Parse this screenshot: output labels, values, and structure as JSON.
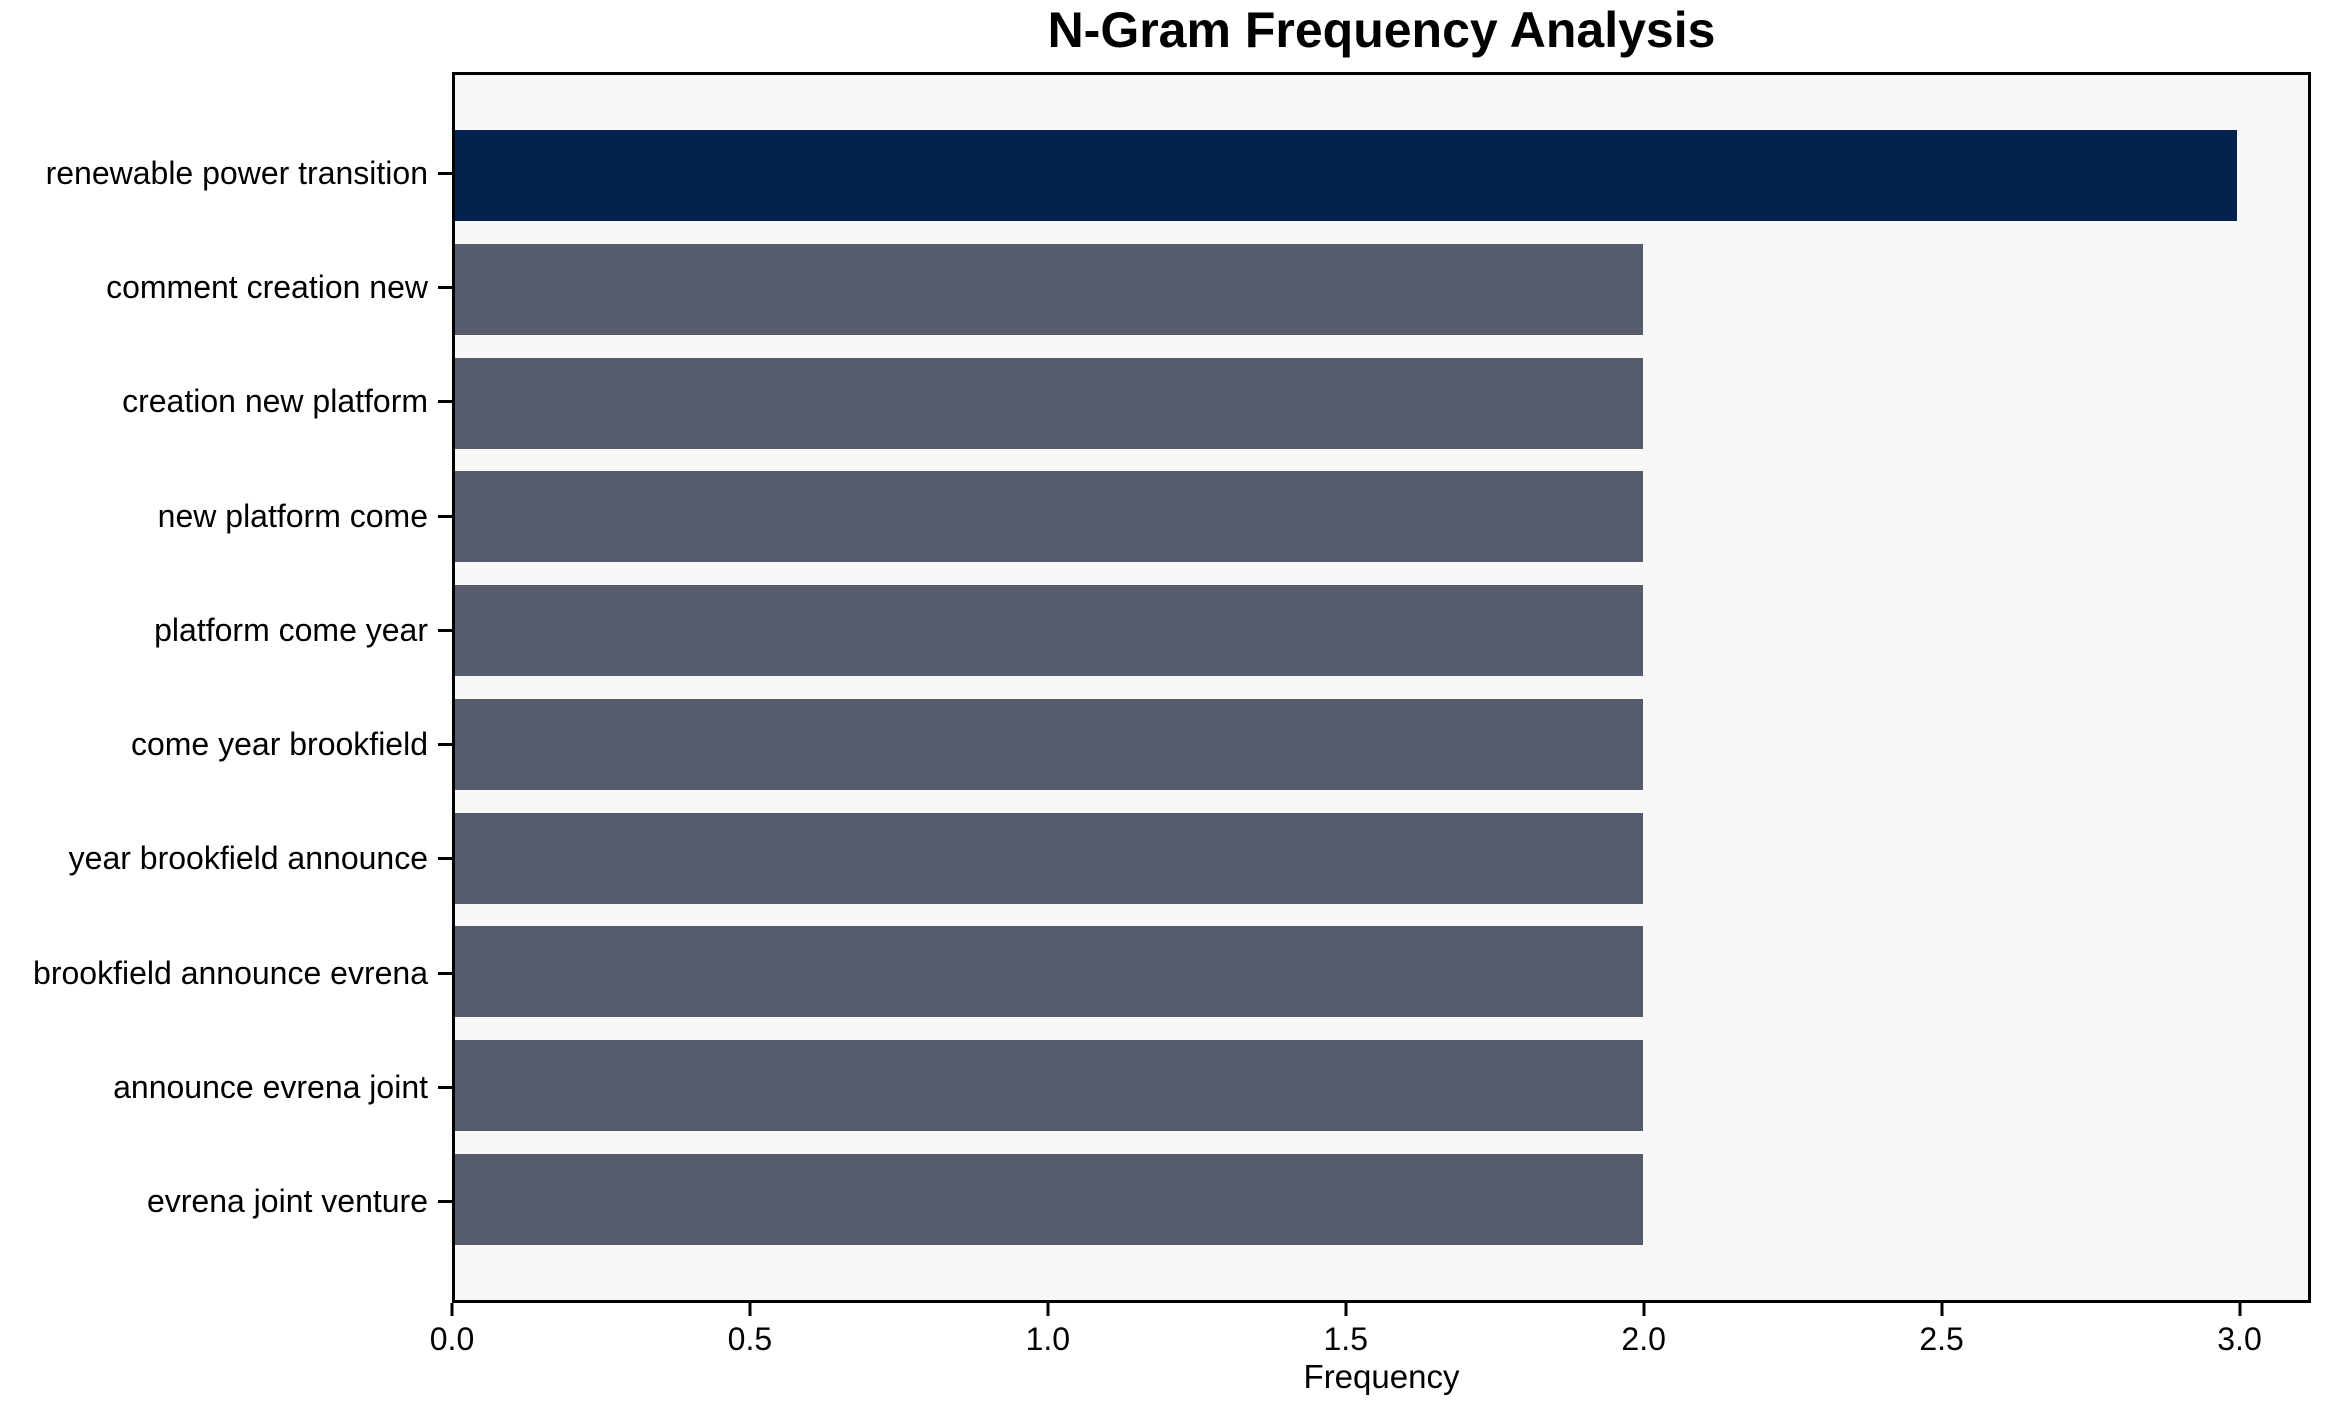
{
  "colors": {
    "highlight_bar": "#01234d",
    "default_bar": "#565c6b",
    "plot_background": "#f8f8f8",
    "canvas_background": "#ffffff",
    "axis": "#000000"
  },
  "chart_data": {
    "type": "bar",
    "orientation": "horizontal",
    "title": "N-Gram Frequency Analysis",
    "xlabel": "Frequency",
    "ylabel": "",
    "grid": false,
    "legend": null,
    "categories": [
      "renewable power transition",
      "comment creation new",
      "creation new platform",
      "new platform come",
      "platform come year",
      "come year brookfield",
      "year brookfield announce",
      "brookfield announce evrena",
      "announce evrena joint",
      "evrena joint venture"
    ],
    "values": [
      3,
      2,
      2,
      2,
      2,
      2,
      2,
      2,
      2,
      2
    ],
    "bar_colors": [
      "#01234d",
      "#565c6b",
      "#565c6b",
      "#565c6b",
      "#565c6b",
      "#565c6b",
      "#565c6b",
      "#565c6b",
      "#565c6b",
      "#565c6b"
    ],
    "xlim": [
      0,
      3.12
    ],
    "xticks": [
      {
        "value": 0.0,
        "label": "0.0"
      },
      {
        "value": 0.5,
        "label": "0.5"
      },
      {
        "value": 1.0,
        "label": "1.0"
      },
      {
        "value": 1.5,
        "label": "1.5"
      },
      {
        "value": 2.0,
        "label": "2.0"
      },
      {
        "value": 2.5,
        "label": "2.5"
      },
      {
        "value": 3.0,
        "label": "3.0"
      }
    ]
  }
}
